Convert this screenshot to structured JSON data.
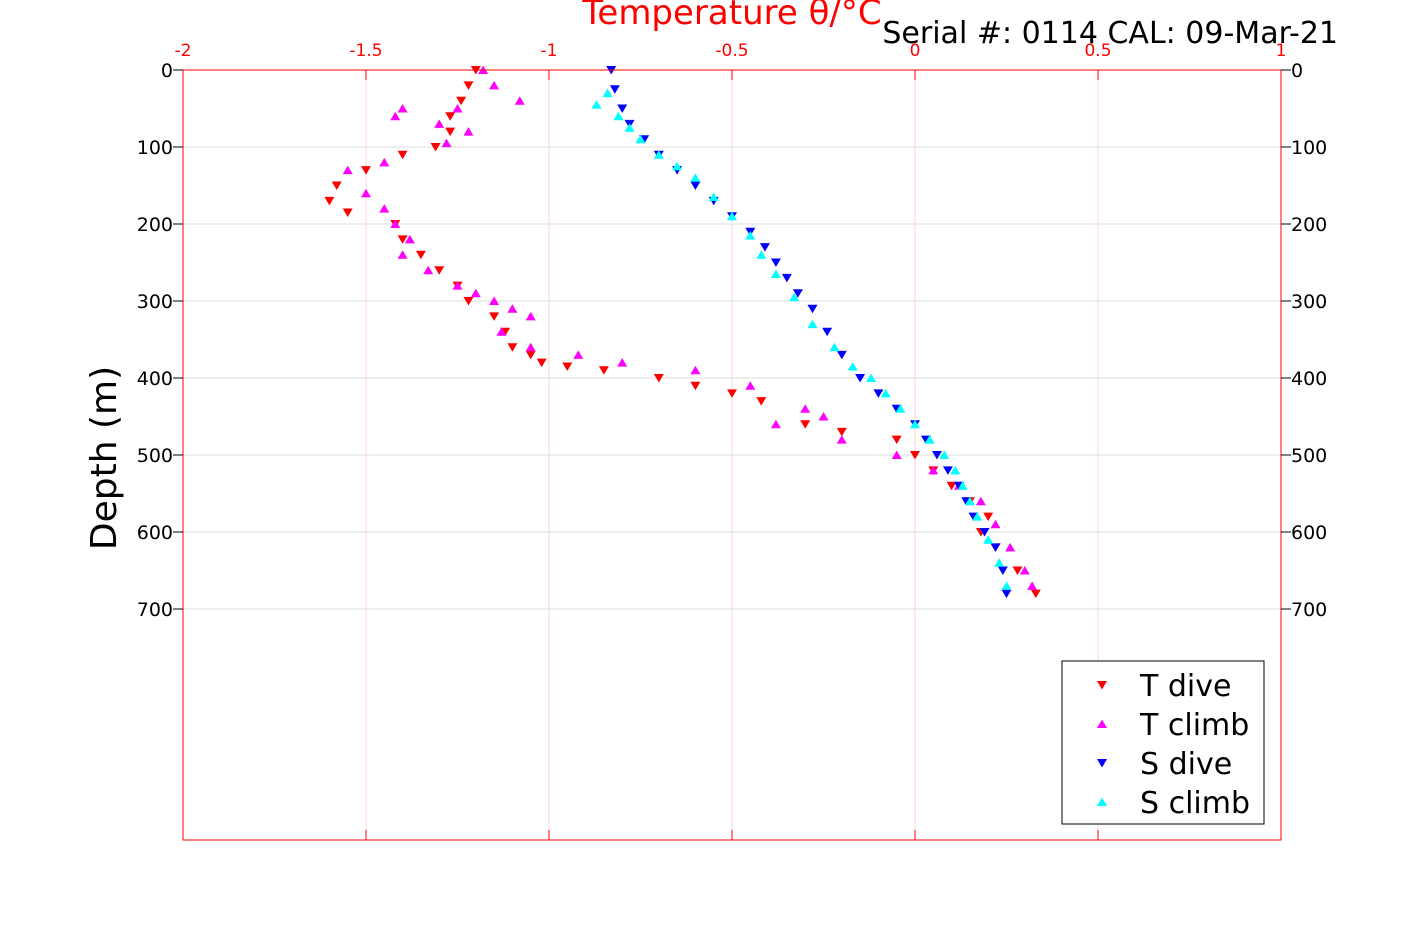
{
  "header": {
    "serial_text": "Serial #: 0114  CAL: 09-Mar-21"
  },
  "colors": {
    "axis": "#ff0000",
    "grid": "#dcdcdc",
    "T dive": "#ff0000",
    "T climb": "#ff00ff",
    "S dive": "#0000ff",
    "S climb": "#00ffff"
  },
  "chart_data": {
    "type": "scatter",
    "title": "Temperature θ/°C",
    "xlabel": "Temperature θ/°C",
    "ylabel": "Depth (m)",
    "xlim": [
      -2,
      1
    ],
    "ylim": [
      0,
      1000
    ],
    "y_reversed": true,
    "x_ticks": [
      "-2",
      "-1.5",
      "-1",
      "-0.5",
      "0",
      "0.5",
      "1"
    ],
    "y_ticks": [
      "0",
      "100",
      "200",
      "300",
      "400",
      "500",
      "600",
      "700"
    ],
    "grid": true,
    "legend_position": "bottom-right",
    "legend": [
      "T dive",
      "T climb",
      "S dive",
      "S climb"
    ],
    "series": [
      {
        "name": "T dive",
        "marker": "triangle-down",
        "x": [
          -1.2,
          -1.22,
          -1.24,
          -1.27,
          -1.27,
          -1.31,
          -1.4,
          -1.5,
          -1.58,
          -1.6,
          -1.55,
          -1.42,
          -1.4,
          -1.35,
          -1.3,
          -1.25,
          -1.22,
          -1.15,
          -1.12,
          -1.1,
          -1.05,
          -1.02,
          -0.95,
          -0.85,
          -0.7,
          -0.6,
          -0.5,
          -0.42,
          -0.3,
          -0.2,
          -0.05,
          0.0,
          0.05,
          0.1,
          0.15,
          0.2,
          0.18,
          0.22,
          0.28,
          0.33
        ],
        "y": [
          0,
          20,
          40,
          60,
          80,
          100,
          110,
          130,
          150,
          170,
          185,
          200,
          220,
          240,
          260,
          280,
          300,
          320,
          340,
          360,
          370,
          380,
          385,
          390,
          400,
          410,
          420,
          430,
          460,
          470,
          480,
          500,
          520,
          540,
          560,
          580,
          600,
          620,
          650,
          680
        ]
      },
      {
        "name": "T climb",
        "marker": "triangle-up",
        "x": [
          -1.18,
          -1.15,
          -1.08,
          -1.25,
          -1.4,
          -1.42,
          -1.3,
          -1.22,
          -1.28,
          -1.45,
          -1.55,
          -1.5,
          -1.45,
          -1.42,
          -1.38,
          -1.4,
          -1.33,
          -1.25,
          -1.2,
          -1.15,
          -1.1,
          -1.05,
          -1.13,
          -1.05,
          -0.92,
          -0.8,
          -0.6,
          -0.45,
          -0.3,
          -0.25,
          -0.38,
          -0.2,
          -0.05,
          0.05,
          0.12,
          0.18,
          0.22,
          0.26,
          0.3,
          0.32
        ],
        "y": [
          0,
          20,
          40,
          50,
          50,
          60,
          70,
          80,
          95,
          120,
          130,
          160,
          180,
          200,
          220,
          240,
          260,
          280,
          290,
          300,
          310,
          320,
          340,
          360,
          370,
          380,
          390,
          410,
          440,
          450,
          460,
          480,
          500,
          520,
          540,
          560,
          590,
          620,
          650,
          670
        ]
      },
      {
        "name": "S dive",
        "marker": "triangle-down",
        "x": [
          -0.83,
          -0.82,
          -0.8,
          -0.78,
          -0.74,
          -0.7,
          -0.65,
          -0.6,
          -0.55,
          -0.5,
          -0.45,
          -0.41,
          -0.38,
          -0.35,
          -0.32,
          -0.28,
          -0.24,
          -0.2,
          -0.15,
          -0.1,
          -0.05,
          0.0,
          0.03,
          0.06,
          0.09,
          0.12,
          0.14,
          0.16,
          0.19,
          0.22,
          0.24,
          0.25
        ],
        "y": [
          0,
          25,
          50,
          70,
          90,
          110,
          130,
          150,
          170,
          190,
          210,
          230,
          250,
          270,
          290,
          310,
          340,
          370,
          400,
          420,
          440,
          460,
          480,
          500,
          520,
          540,
          560,
          580,
          600,
          620,
          650,
          680
        ]
      },
      {
        "name": "S climb",
        "marker": "triangle-up",
        "x": [
          -0.87,
          -0.84,
          -0.81,
          -0.78,
          -0.75,
          -0.7,
          -0.65,
          -0.6,
          -0.55,
          -0.5,
          -0.45,
          -0.42,
          -0.38,
          -0.33,
          -0.28,
          -0.22,
          -0.17,
          -0.12,
          -0.08,
          -0.04,
          0.0,
          0.04,
          0.08,
          0.11,
          0.13,
          0.15,
          0.17,
          0.2,
          0.23,
          0.25
        ],
        "y": [
          45,
          30,
          60,
          75,
          90,
          110,
          125,
          140,
          165,
          190,
          215,
          240,
          265,
          295,
          330,
          360,
          385,
          400,
          420,
          440,
          460,
          480,
          500,
          520,
          540,
          560,
          580,
          610,
          640,
          670
        ]
      }
    ]
  }
}
